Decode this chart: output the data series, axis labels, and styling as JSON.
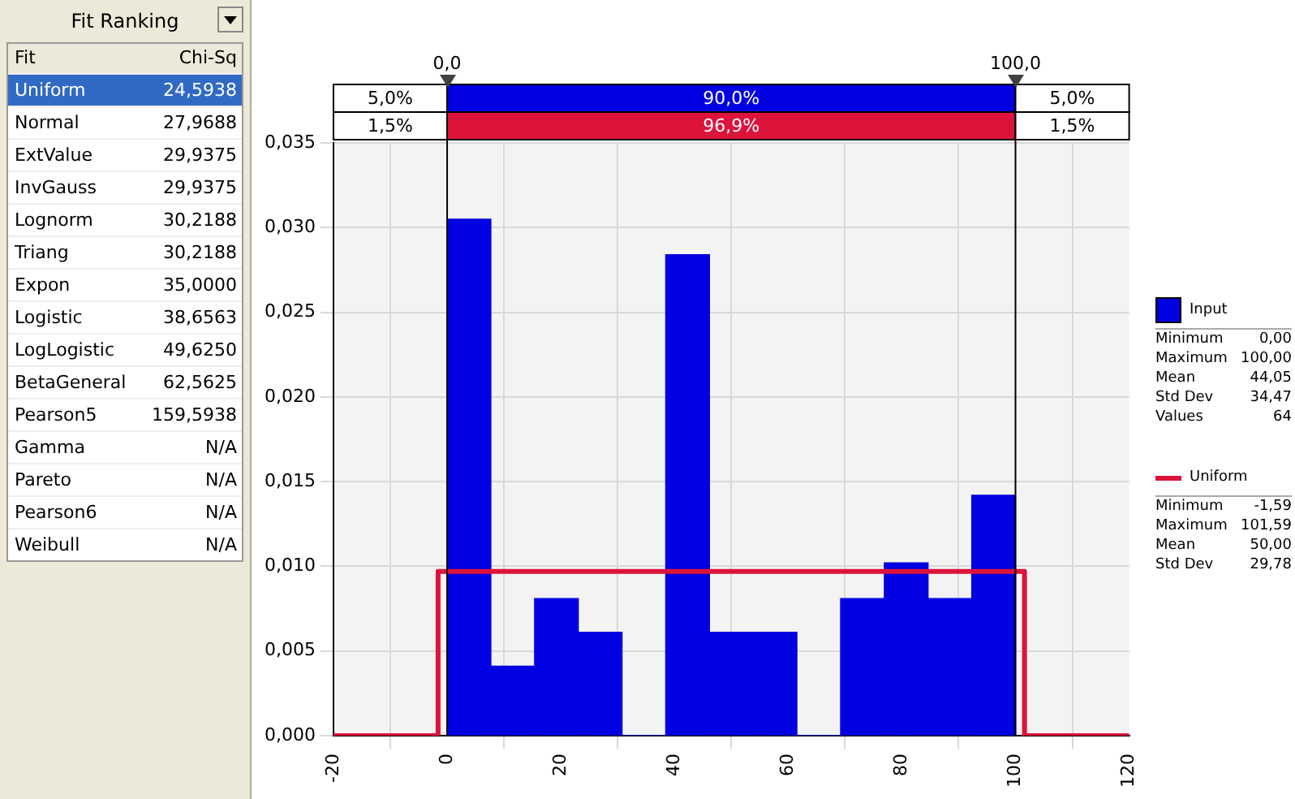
{
  "chart_data": [
    {
      "type": "other",
      "title": "Fit Ranking",
      "annotations": [
        "Fit",
        "Chi-Sq",
        "24,5938",
        "27,9688",
        "29,9375",
        "29,9375",
        "30,2188",
        "30,2188",
        "35,0000",
        "38,6563",
        "49,6250",
        "62,5625",
        "159,5938",
        "N/A",
        "N/A",
        "N/A",
        "N/A"
      ],
      "colors": [
        "#316ac5",
        "#ffffff",
        "#ffffff",
        "#ffffff",
        "#ffffff",
        "#ffffff",
        "#ffffff",
        "#ffffff",
        "#ffffff",
        "#ffffff",
        "#ffffff",
        "#ffffff",
        "#ffffff",
        "#ffffff",
        "#ffffff"
      ],
      "categories": [
        "Uniform",
        "Normal",
        "ExtValue",
        "InvGauss",
        "Lognorm",
        "Triang",
        "Expon",
        "Logistic",
        "LogLogistic",
        "BetaGeneral",
        "Pearson5",
        "Gamma",
        "Pareto",
        "Pearson6",
        "Weibull"
      ]
    },
    {
      "type": "histogram",
      "bins": [
        0,
        7.6923,
        15.3846,
        23.0769,
        30.7692,
        38.4615,
        46.1538,
        53.8462,
        61.5385,
        69.2308,
        76.9231,
        84.6154,
        92.3077,
        100
      ],
      "series": [
        {
          "name": "Input",
          "color": "#0000e0",
          "values": [
            0.0305,
            0.0041,
            0.0081,
            0.0061,
            0,
            0.0284,
            0.0061,
            0.0061,
            0,
            0.0081,
            0.0102,
            0.0081,
            0.0142
          ]
        },
        {
          "name": "Uniform",
          "type": "line",
          "color": "#dc143c",
          "x": [
            -20,
            -1.59,
            -1.59,
            101.59,
            101.59,
            120
          ],
          "values": [
            0,
            0,
            0.0097,
            0.0097,
            0,
            0
          ]
        }
      ],
      "xlim": [
        -20,
        120
      ],
      "xticks": [
        -20,
        0,
        20,
        40,
        60,
        80,
        100,
        120
      ],
      "ylim": [
        0,
        0.035
      ],
      "yticks": [
        {
          "value": 0,
          "label": "0,000"
        },
        {
          "value": 0.005,
          "label": "0,005"
        },
        {
          "value": 0.01,
          "label": "0,010"
        },
        {
          "value": 0.015,
          "label": "0,015"
        },
        {
          "value": 0.02,
          "label": "0,020"
        },
        {
          "value": 0.025,
          "label": "0,025"
        },
        {
          "value": 0.03,
          "label": "0,030"
        },
        {
          "value": 0.035,
          "label": "0,035"
        }
      ],
      "ref_lines": [
        {
          "axis": "x",
          "value": 0,
          "label": "0,0",
          "color": "#000000"
        },
        {
          "axis": "x",
          "value": 100,
          "label": "100,0",
          "color": "#000000"
        }
      ],
      "annotations": [
        "5,0%",
        "90,0%",
        "5,0%",
        "1,5%",
        "96,9%",
        "1,5%",
        "Minimum",
        "0,00",
        "Maximum",
        "100,00",
        "Mean",
        "44,05",
        "Std Dev",
        "34,47",
        "Values",
        "64",
        "Minimum",
        "-1,59",
        "Maximum",
        "101,59",
        "Mean",
        "50,00",
        "Std Dev",
        "29,78"
      ],
      "grid": true,
      "legend": "right"
    }
  ]
}
